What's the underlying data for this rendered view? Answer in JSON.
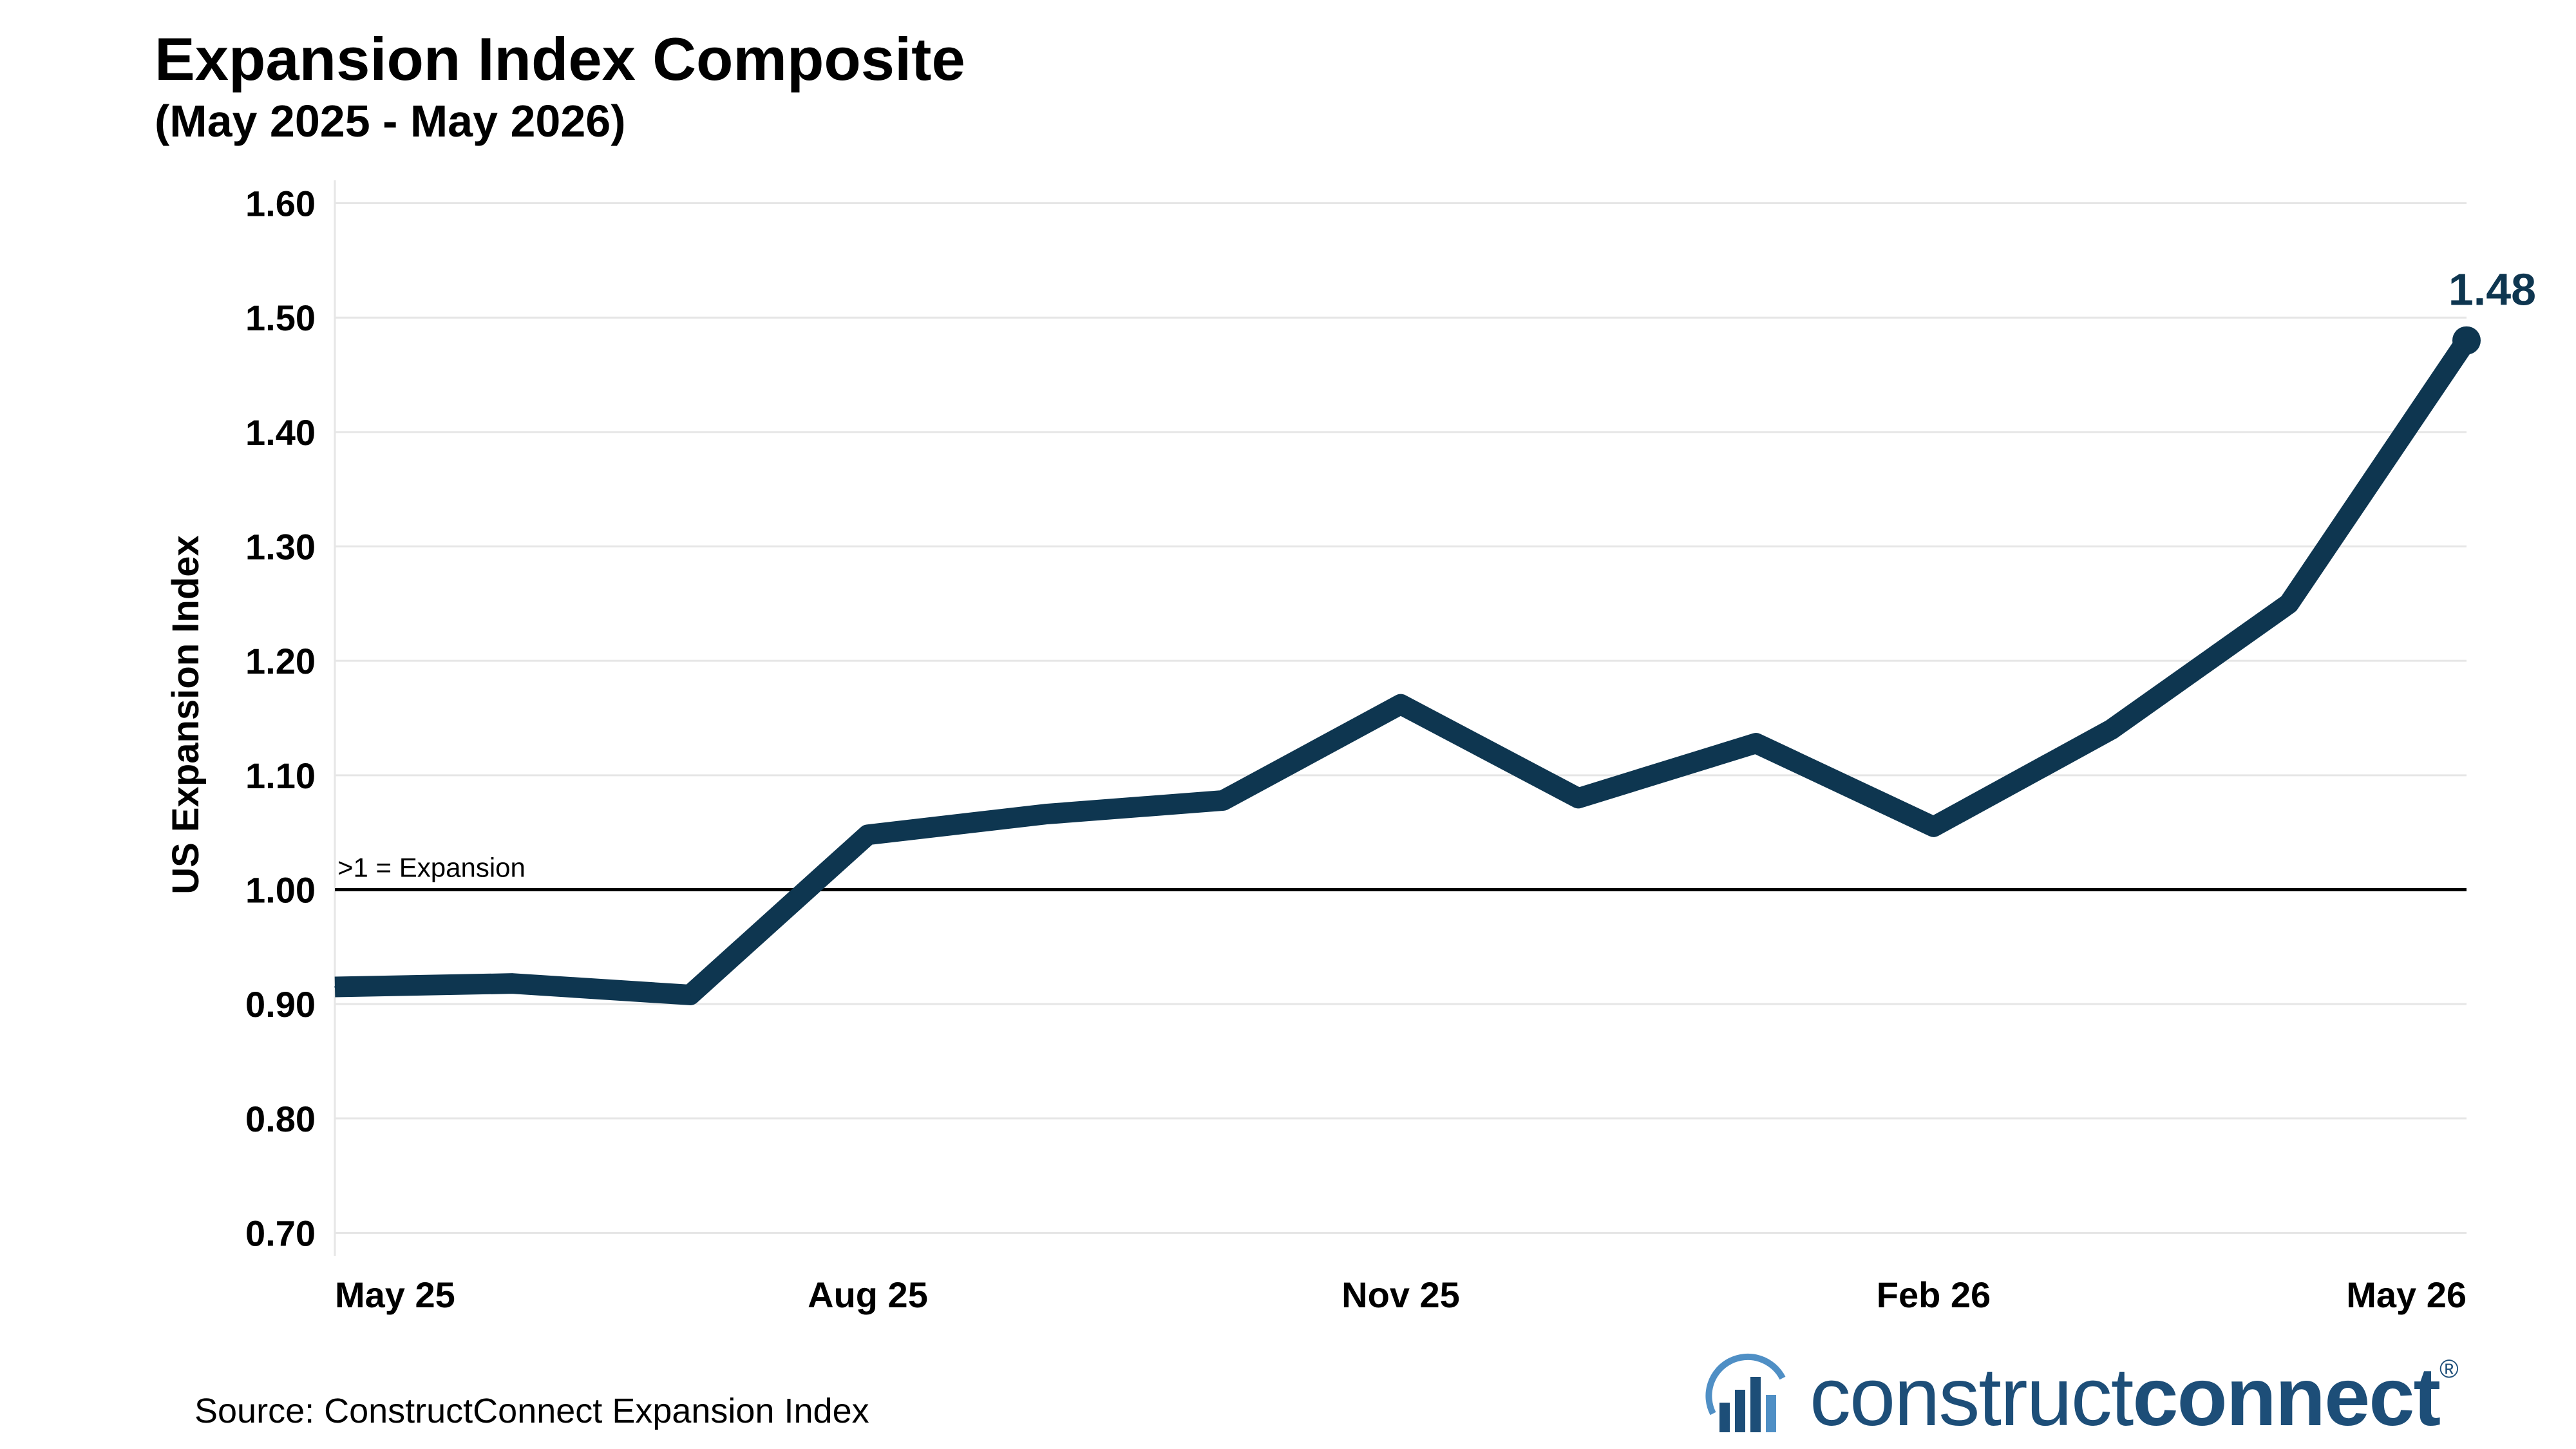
{
  "colors": {
    "line": "#0e3650",
    "grid": "#e6e6e6",
    "reference": "#000000",
    "logo": "#1d4e78",
    "logo_accent": "#4f8fc5"
  },
  "source": "Source: ConstructConnect Expansion Index",
  "logo": {
    "text_light": "construct",
    "text_bold": "connect",
    "trademark": "®",
    "icon": "building-chart-icon"
  },
  "chart_data": {
    "type": "line",
    "title": "Expansion Index Composite",
    "subtitle": "(May 2025 - May 2026)",
    "ylabel": "US Expansion Index",
    "xlabel": "",
    "ylim": [
      0.68,
      1.62
    ],
    "grid": true,
    "y_ticks": [
      {
        "value": 0.7,
        "label": "0.70"
      },
      {
        "value": 0.8,
        "label": "0.80"
      },
      {
        "value": 0.9,
        "label": "0.90"
      },
      {
        "value": 1.0,
        "label": "1.00"
      },
      {
        "value": 1.1,
        "label": "1.10"
      },
      {
        "value": 1.2,
        "label": "1.20"
      },
      {
        "value": 1.3,
        "label": "1.30"
      },
      {
        "value": 1.4,
        "label": "1.40"
      },
      {
        "value": 1.5,
        "label": "1.50"
      },
      {
        "value": 1.6,
        "label": "1.60"
      }
    ],
    "x": [
      "2025-05",
      "2025-06",
      "2025-07",
      "2025-08",
      "2025-09",
      "2025-10",
      "2025-11",
      "2025-12",
      "2026-01",
      "2026-02",
      "2026-03",
      "2026-04",
      "2026-05"
    ],
    "x_ticks": [
      {
        "x": "2025-05",
        "label": "May 25"
      },
      {
        "x": "2025-08",
        "label": "Aug 25"
      },
      {
        "x": "2025-11",
        "label": "Nov 25"
      },
      {
        "x": "2026-02",
        "label": "Feb 26"
      },
      {
        "x": "2026-05",
        "label": "May 26"
      }
    ],
    "series": [
      {
        "values": [
          0.915,
          0.918,
          0.908,
          1.048,
          1.066,
          1.078,
          1.162,
          1.08,
          1.128,
          1.055,
          1.14,
          1.25,
          1.48
        ]
      }
    ],
    "reference_line": {
      "y": 1.0,
      "label": ">1 = Expansion"
    },
    "annotations": [
      {
        "x": "2026-05",
        "y": 1.48,
        "text": "1.48"
      }
    ]
  }
}
